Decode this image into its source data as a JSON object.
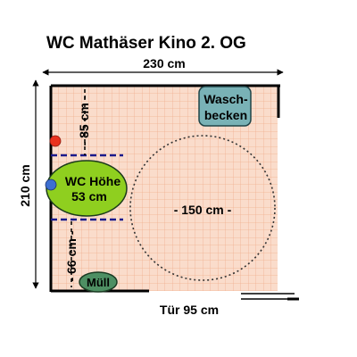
{
  "title": "WC Mathäser Kino 2. OG",
  "dimensions": {
    "width": "230 cm",
    "height": "210 cm",
    "door_width": "Tür 95 cm",
    "to_toilet_top": "- 85 cm -",
    "to_toilet_bottom": "- 66 cm -",
    "turning_circle": "- 150 cm -"
  },
  "fixtures": {
    "washbasin": {
      "line1": "Wasch-",
      "line2": "becken"
    },
    "toilet": {
      "line1": "WC Höhe",
      "line2": "53 cm"
    },
    "trash": "Müll"
  },
  "colors": {
    "floor": "#fadccb",
    "tile_grid": "#f0b090",
    "wall": "#000000",
    "toilet_fill": "#8fcf1f",
    "washbasin_fill": "#79b2b6",
    "trash_fill": "#4e8f63",
    "grab_bar_dashes": "#1a1a8c",
    "red_marker": "#e8321e",
    "blue_marker": "#3d6fd0"
  }
}
